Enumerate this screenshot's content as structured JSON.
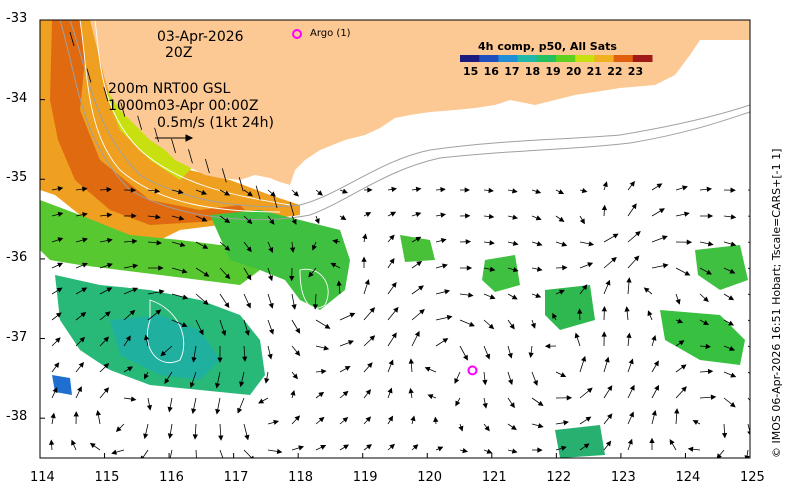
{
  "header": {
    "date": "03-Apr-2026",
    "hour": "20Z",
    "depth_line1": "200m  NRT00 GSL",
    "depth_line2": "1000m03-Apr 00:00Z",
    "speed_scale": "0.5m/s (1kt 24h)"
  },
  "argo": {
    "legend_label": "Argo (1)",
    "marker_color": "#ff00ff",
    "position": {
      "lon": 120.7,
      "lat": -37.4
    }
  },
  "colorbar": {
    "title": "4h comp, p50, All Sats",
    "ticks": [
      "15",
      "16",
      "17",
      "18",
      "19",
      "20",
      "21",
      "22",
      "23"
    ],
    "colors": [
      "#1a1a80",
      "#1f4fbf",
      "#1f8fd8",
      "#20b8a8",
      "#22c060",
      "#60d020",
      "#c8e010",
      "#f0b020",
      "#e06010",
      "#a01818"
    ]
  },
  "axes": {
    "x_ticks": [
      "114",
      "115",
      "116",
      "117",
      "118",
      "119",
      "120",
      "121",
      "122",
      "123",
      "124",
      "125"
    ],
    "y_ticks": [
      "-33",
      "-34",
      "-35",
      "-36",
      "-37",
      "-38"
    ],
    "x_range": [
      114,
      125
    ],
    "y_range": [
      -38.5,
      -33
    ]
  },
  "credit": "© IMOS 06-Apr-2026 16:51 Hobart; Tscale=CARS+[-1 1]",
  "colors": {
    "land": "#fcc893",
    "current_arrow": "#000000",
    "isobath": "#a0a0a0",
    "contour": "#ffffff"
  }
}
